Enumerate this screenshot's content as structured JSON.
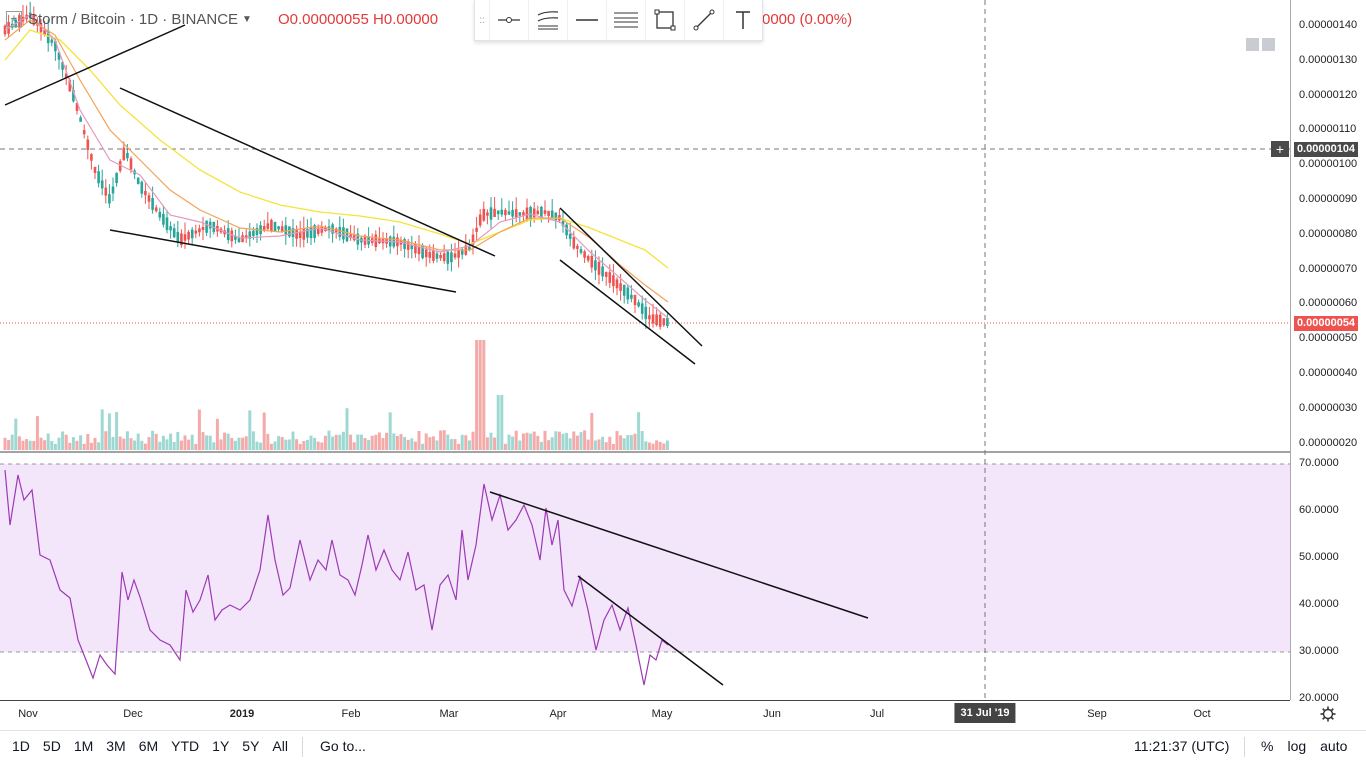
{
  "legend": {
    "symbol": "Storm / Bitcoin · 1D · BINANCE",
    "ohlc": "O0.00000055 H0.00000",
    "change": "0000 (0.00%)"
  },
  "toolbar": {
    "grip": "::",
    "tools": [
      "horizontal-ray-icon",
      "parallel-channel-icon",
      "horizontal-line-icon",
      "fib-retracement-icon",
      "rectangle-icon",
      "trend-line-icon",
      "text-icon"
    ]
  },
  "price_axis": {
    "ticks": [
      "0.00000140",
      "0.00000130",
      "0.00000120",
      "0.00000110",
      "0.00000100",
      "0.00000090",
      "0.00000080",
      "0.00000070",
      "0.00000060",
      "0.00000050",
      "0.00000040",
      "0.00000030",
      "0.00000020"
    ],
    "crosshair_label": "0.00000104",
    "last_price_label": "0.00000054",
    "last_price_color": "#ef5350",
    "crosshair_tag_color": "#4a4a4a"
  },
  "rsi_axis": {
    "ticks": [
      "70.0000",
      "60.0000",
      "50.0000",
      "40.0000",
      "30.0000",
      "20.0000"
    ],
    "band_color": "#f3e5fa",
    "line_color": "#9c3ab5"
  },
  "time_axis": {
    "ticks": [
      "Nov",
      "Dec",
      "2019",
      "Feb",
      "Mar",
      "Apr",
      "May",
      "Jun",
      "Jul",
      "Sep",
      "Oct"
    ],
    "crosshair_label": "31 Jul '19"
  },
  "colors": {
    "up": "#26a69a",
    "down": "#ef5350",
    "ma_fast": "#e29bbf",
    "ma_mid": "#f3a35a",
    "ma_slow": "#f5e33b"
  },
  "bottom_bar": {
    "ranges": [
      "1D",
      "5D",
      "1M",
      "3M",
      "6M",
      "YTD",
      "1Y",
      "5Y",
      "All"
    ],
    "goto_label": "Go to...",
    "clock": "11:21:37 (UTC)",
    "percent_label": "%",
    "log_label": "log",
    "auto_label": "auto"
  }
}
